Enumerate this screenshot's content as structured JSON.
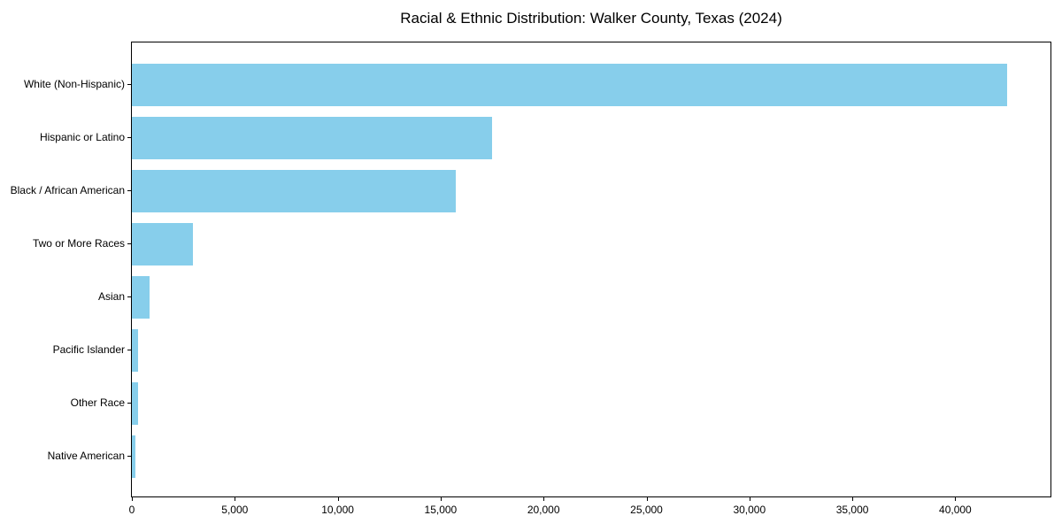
{
  "chart_data": {
    "type": "bar",
    "orientation": "horizontal",
    "title": "Racial & Ethnic Distribution: Walker County, Texas (2024)",
    "categories": [
      "White (Non-Hispanic)",
      "Hispanic or Latino",
      "Black / African American",
      "Two or More Races",
      "Asian",
      "Pacific Islander",
      "Other Race",
      "Native American"
    ],
    "values": [
      42500,
      17480,
      15750,
      2950,
      840,
      320,
      280,
      150
    ],
    "xlabel": "",
    "ylabel": "",
    "xlim": [
      0,
      44625
    ],
    "xticks": [
      0,
      5000,
      10000,
      15000,
      20000,
      25000,
      30000,
      35000,
      40000
    ],
    "xtick_labels": [
      "0",
      "5,000",
      "10,000",
      "15,000",
      "20,000",
      "25,000",
      "30,000",
      "35,000",
      "40,000"
    ],
    "grid": false,
    "legend": null,
    "bar_color": "#87CEEB",
    "axis_color": "#000000",
    "background_color": "#FFFFFF"
  }
}
